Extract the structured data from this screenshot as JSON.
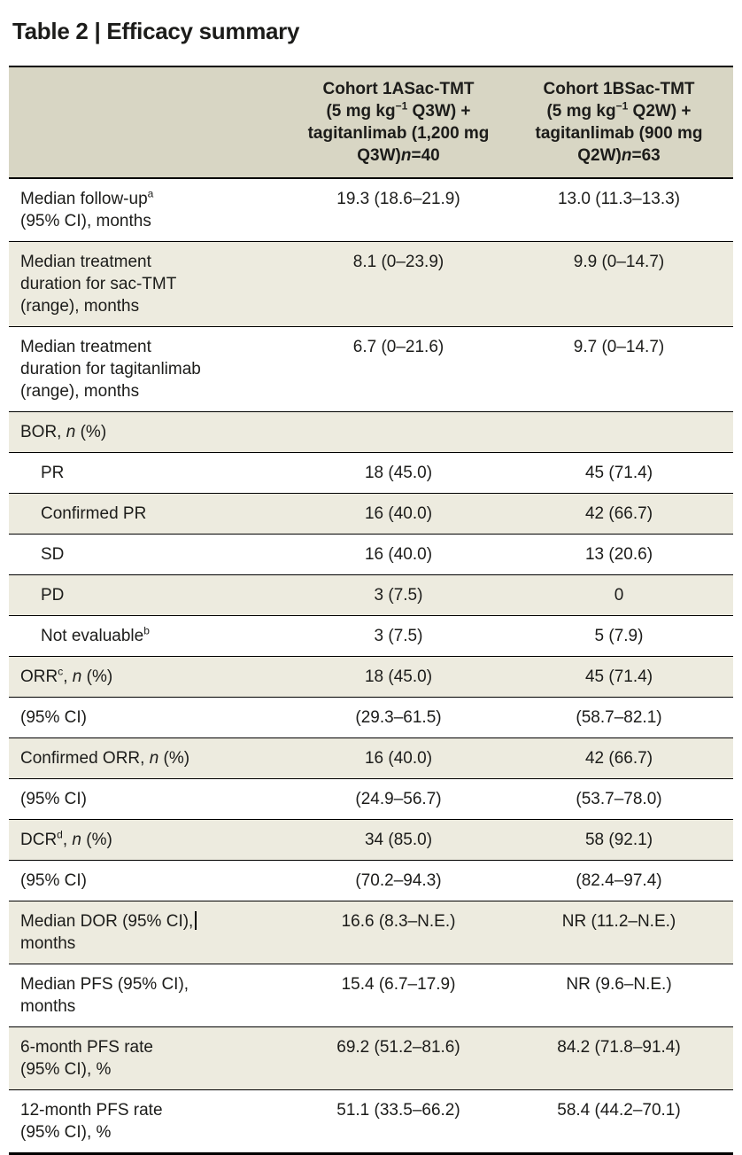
{
  "title": "Table 2 | Efficacy summary",
  "colors": {
    "header_bg": "#d8d6c4",
    "row_alt_bg": "#edebdf",
    "row_bg": "#ffffff",
    "text": "#1c1c1a",
    "border": "#000000"
  },
  "table": {
    "header": {
      "row_label_column": "",
      "cohort_1a": [
        "Cohort 1ASac-TMT",
        {
          "br": true
        },
        "(5 mg kg",
        {
          "t": "−1",
          "sup": true
        },
        " Q3W) +",
        {
          "br": true
        },
        "tagitanlimab (1,200 mg",
        {
          "br": true
        },
        "Q3W)",
        {
          "t": "n",
          "i": true
        },
        "=40"
      ],
      "cohort_1b": [
        "Cohort 1BSac-TMT",
        {
          "br": true
        },
        "(5 mg kg",
        {
          "t": "−1",
          "sup": true
        },
        " Q2W) +",
        {
          "br": true
        },
        "tagitanlimab (900 mg",
        {
          "br": true
        },
        "Q2W)",
        {
          "t": "n",
          "i": true
        },
        "=63"
      ]
    },
    "rows": [
      {
        "label": [
          "Median follow-up",
          {
            "t": "a",
            "sup": true
          },
          {
            "br": true
          },
          "(95% CI), months"
        ],
        "values": [
          "19.3 (18.6–21.9)",
          "13.0 (11.3–13.3)"
        ],
        "shaded": false,
        "indent": false
      },
      {
        "label": [
          "Median treatment",
          {
            "br": true
          },
          "duration for sac-TMT",
          {
            "br": true
          },
          "(range), months"
        ],
        "values": [
          "8.1 (0–23.9)",
          "9.9 (0–14.7)"
        ],
        "shaded": true,
        "indent": false
      },
      {
        "label": [
          "Median treatment",
          {
            "br": true
          },
          "duration for tagitanlimab",
          {
            "br": true
          },
          "(range), months"
        ],
        "values": [
          "6.7 (0–21.6)",
          "9.7 (0–14.7)"
        ],
        "shaded": false,
        "indent": false
      },
      {
        "label": [
          "BOR, ",
          {
            "t": "n",
            "i": true
          },
          " (%)"
        ],
        "values": [
          "",
          ""
        ],
        "shaded": true,
        "indent": false
      },
      {
        "label": "PR",
        "values": [
          "18 (45.0)",
          "45 (71.4)"
        ],
        "shaded": false,
        "indent": true
      },
      {
        "label": "Confirmed PR",
        "values": [
          "16 (40.0)",
          "42 (66.7)"
        ],
        "shaded": true,
        "indent": true
      },
      {
        "label": "SD",
        "values": [
          "16 (40.0)",
          "13 (20.6)"
        ],
        "shaded": false,
        "indent": true
      },
      {
        "label": "PD",
        "values": [
          "3 (7.5)",
          "0"
        ],
        "shaded": true,
        "indent": true
      },
      {
        "label": [
          "Not evaluable",
          {
            "t": "b",
            "sup": true
          }
        ],
        "values": [
          "3 (7.5)",
          "5 (7.9)"
        ],
        "shaded": false,
        "indent": true
      },
      {
        "label": [
          "ORR",
          {
            "t": "c",
            "sup": true
          },
          ", ",
          {
            "t": "n",
            "i": true
          },
          " (%)"
        ],
        "values": [
          "18 (45.0)",
          "45 (71.4)"
        ],
        "shaded": true,
        "indent": false
      },
      {
        "label": "(95% CI)",
        "values": [
          "(29.3–61.5)",
          "(58.7–82.1)"
        ],
        "shaded": false,
        "indent": false
      },
      {
        "label": [
          "Confirmed ORR, ",
          {
            "t": "n",
            "i": true
          },
          " (%)"
        ],
        "values": [
          "16 (40.0)",
          "42 (66.7)"
        ],
        "shaded": true,
        "indent": false
      },
      {
        "label": "(95% CI)",
        "values": [
          "(24.9–56.7)",
          "(53.7–78.0)"
        ],
        "shaded": false,
        "indent": false
      },
      {
        "label": [
          "DCR",
          {
            "t": "d",
            "sup": true
          },
          ", ",
          {
            "t": "n",
            "i": true
          },
          " (%)"
        ],
        "values": [
          "34 (85.0)",
          "58 (92.1)"
        ],
        "shaded": true,
        "indent": false
      },
      {
        "label": "(95% CI)",
        "values": [
          "(70.2–94.3)",
          "(82.4–97.4)"
        ],
        "shaded": false,
        "indent": false
      },
      {
        "label": [
          "Median DOR (95% CI),",
          {
            "caret": true
          },
          {
            "br": true
          },
          "months"
        ],
        "values": [
          "16.6 (8.3–N.E.)",
          "NR (11.2–N.E.)"
        ],
        "shaded": true,
        "indent": false
      },
      {
        "label": [
          "Median PFS (95% CI),",
          {
            "br": true
          },
          "months"
        ],
        "values": [
          "15.4 (6.7–17.9)",
          "NR (9.6–N.E.)"
        ],
        "shaded": false,
        "indent": false
      },
      {
        "label": [
          "6-month PFS rate",
          {
            "br": true
          },
          "(95% CI), %"
        ],
        "values": [
          "69.2 (51.2–81.6)",
          "84.2 (71.8–91.4)"
        ],
        "shaded": true,
        "indent": false
      },
      {
        "label": [
          "12-month PFS rate",
          {
            "br": true
          },
          "(95% CI), %"
        ],
        "values": [
          "51.1 (33.5–66.2)",
          "58.4 (44.2–70.1)"
        ],
        "shaded": false,
        "indent": false
      }
    ]
  }
}
